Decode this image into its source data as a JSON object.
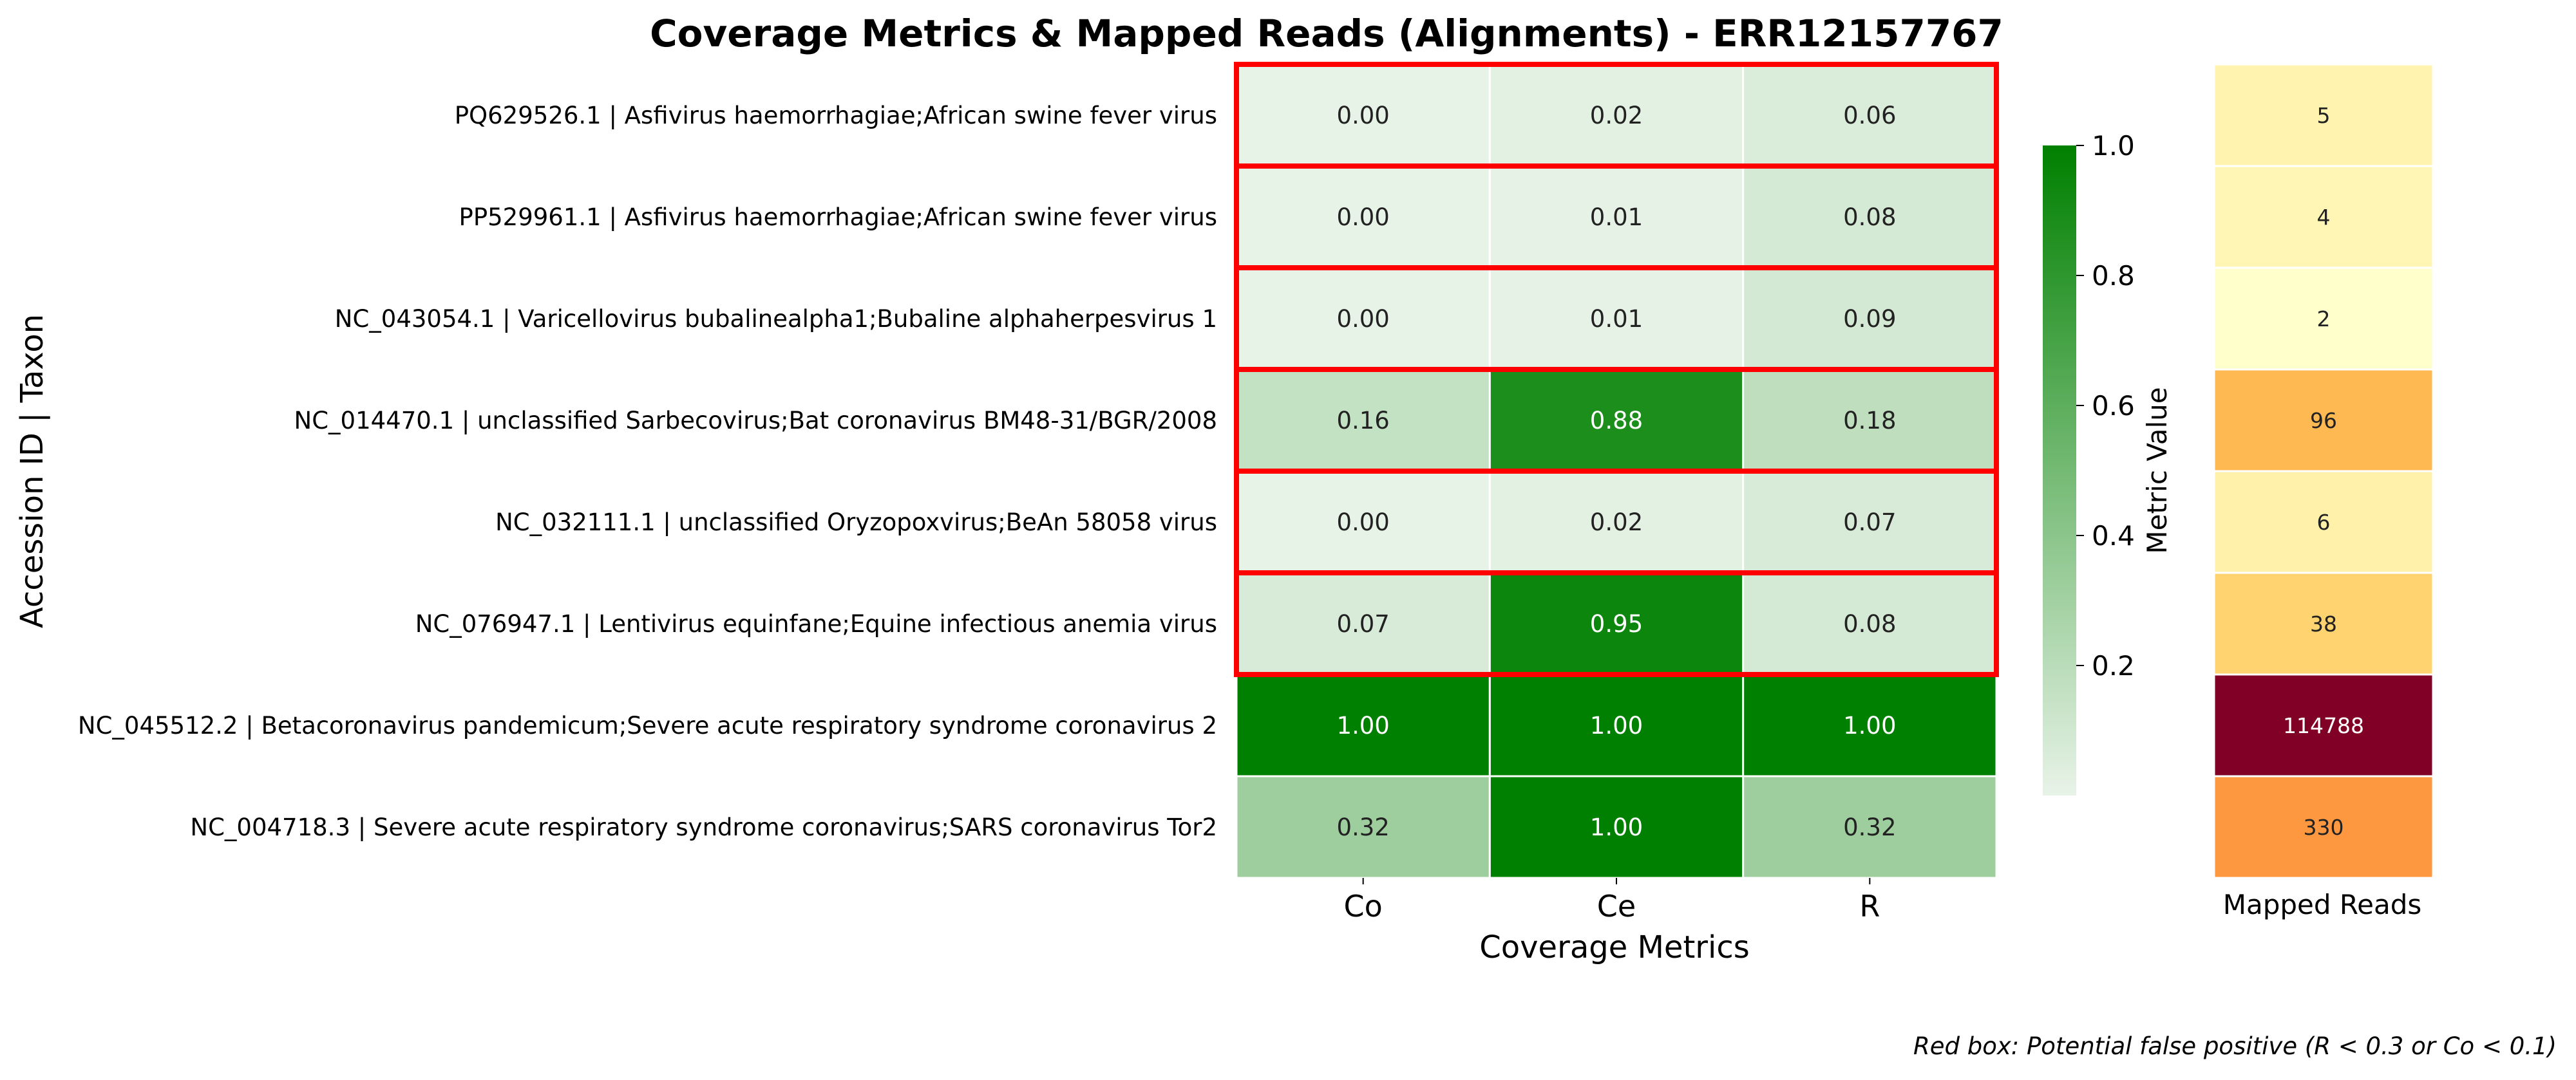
{
  "chart_data": [
    {
      "type": "heatmap",
      "title": "Coverage Metrics & Mapped Reads (Alignments) - ERR12157767",
      "xlabel": "Coverage Metrics",
      "ylabel": "Accession ID | Taxon",
      "columns": [
        "Co",
        "Ce",
        "R"
      ],
      "rows": [
        "PQ629526.1 | Asfivirus haemorrhagiae;African swine fever virus",
        "PP529961.1 | Asfivirus haemorrhagiae;African swine fever virus",
        "NC_043054.1 | Varicellovirus bubalinealpha1;Bubaline alphaherpesvirus 1",
        "NC_014470.1 | unclassified Sarbecovirus;Bat coronavirus BM48-31/BGR/2008",
        "NC_032111.1 | unclassified Oryzopoxvirus;BeAn 58058 virus",
        "NC_076947.1 | Lentivirus equinfane;Equine infectious anemia virus",
        "NC_045512.2 | Betacoronavirus pandemicum;Severe acute respiratory syndrome coronavirus 2",
        "NC_004718.3 | Severe acute respiratory syndrome coronavirus;SARS coronavirus Tor2"
      ],
      "values": [
        [
          0.0,
          0.02,
          0.06
        ],
        [
          0.0,
          0.01,
          0.08
        ],
        [
          0.0,
          0.01,
          0.09
        ],
        [
          0.16,
          0.88,
          0.18
        ],
        [
          0.0,
          0.02,
          0.07
        ],
        [
          0.07,
          0.95,
          0.08
        ],
        [
          1.0,
          1.0,
          1.0
        ],
        [
          0.32,
          1.0,
          0.32
        ]
      ],
      "flagged_rows": [
        true,
        true,
        true,
        true,
        true,
        true,
        false,
        false
      ],
      "colorbar": {
        "label": "Metric Value",
        "range": [
          0,
          1
        ],
        "ticks": [
          "0.2",
          "0.4",
          "0.6",
          "0.8",
          "1.0"
        ],
        "colors": [
          "#e8f3e8",
          "#008000"
        ]
      },
      "highlight_color": "#ff0000"
    },
    {
      "type": "heatmap",
      "xlabel": "Mapped Reads",
      "values": [
        5,
        4,
        2,
        96,
        6,
        38,
        114788,
        330
      ],
      "scale": "log",
      "colormap": "YlOrRd"
    }
  ],
  "footnote": "Red box: Potential false positive (R < 0.3 or Co < 0.1)"
}
